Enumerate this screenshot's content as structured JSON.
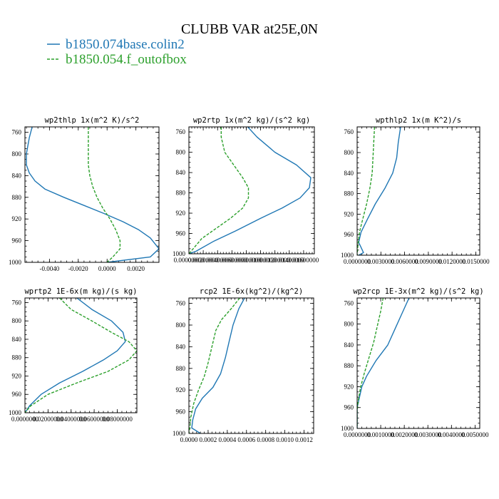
{
  "figure": {
    "title": "CLUBB VAR at25E,0N",
    "legend": [
      {
        "label": "b1850.074base.colin2",
        "color": "#1f77b4",
        "dash": "solid"
      },
      {
        "label": "b1850.054.f_outofbox",
        "color": "#2ca02c",
        "dash": "dashed"
      }
    ]
  },
  "chart_data": [
    {
      "type": "line",
      "title": "wp2thlp  1x(m^2 K)/s^2",
      "xlim": [
        -0.0057,
        0.0036
      ],
      "ylim": [
        1000,
        750
      ],
      "xticks": [
        -0.004,
        -0.002,
        0.0,
        0.002
      ],
      "xtick_labels": [
        "-0.0040",
        "-0.0020",
        "0.0000",
        "0.0020"
      ],
      "yticks": [
        760,
        800,
        840,
        880,
        920,
        960,
        1000
      ],
      "ytick_labels": [
        "760",
        "800",
        "840",
        "880",
        "920",
        "960",
        "1000"
      ],
      "series": [
        {
          "name": "b1850.074base.colin2",
          "color": "#1f77b4",
          "points": [
            [
              -0.0052,
              750
            ],
            [
              -0.0054,
              770
            ],
            [
              -0.0056,
              800
            ],
            [
              -0.0056,
              820
            ],
            [
              -0.0054,
              835
            ],
            [
              -0.005,
              850
            ],
            [
              -0.0043,
              865
            ],
            [
              -0.003,
              880
            ],
            [
              -0.0016,
              895
            ],
            [
              -0.0002,
              910
            ],
            [
              0.0011,
              925
            ],
            [
              0.0022,
              940
            ],
            [
              0.003,
              955
            ],
            [
              0.0036,
              975
            ],
            [
              0.003,
              990
            ],
            [
              0.0,
              1000
            ]
          ]
        },
        {
          "name": "b1850.054.f_outofbox",
          "color": "#2ca02c",
          "points": [
            [
              -0.0013,
              750
            ],
            [
              -0.0013,
              770
            ],
            [
              -0.0013,
              800
            ],
            [
              -0.0013,
              820
            ],
            [
              -0.0012,
              840
            ],
            [
              -0.001,
              860
            ],
            [
              -0.0007,
              880
            ],
            [
              -0.0003,
              900
            ],
            [
              0.0002,
              920
            ],
            [
              0.0006,
              940
            ],
            [
              0.0009,
              960
            ],
            [
              0.0009,
              975
            ],
            [
              0.0004,
              990
            ],
            [
              0.0,
              1000
            ]
          ]
        }
      ]
    },
    {
      "type": "line",
      "title": "wp2rtp  1x(m^2 kg)/(s^2 kg)",
      "xlim": [
        0.0,
        0.0175
      ],
      "ylim": [
        1000,
        750
      ],
      "xticks": [
        0.0,
        0.002,
        0.004,
        0.006,
        0.008,
        0.01,
        0.012,
        0.014,
        0.016
      ],
      "xtick_labels": [
        "0.00000000",
        "0.00200000",
        "0.00400000",
        "0.00600000",
        "0.00800000",
        "0.01000000",
        "0.01200000",
        "0.01400000",
        "0.01600000"
      ],
      "yticks": [
        760,
        800,
        840,
        880,
        920,
        960,
        1000
      ],
      "ytick_labels": [
        "760",
        "800",
        "840",
        "880",
        "920",
        "960",
        "1000"
      ],
      "series": [
        {
          "name": "b1850.074base.colin2",
          "color": "#1f77b4",
          "points": [
            [
              0.0082,
              750
            ],
            [
              0.0095,
              770
            ],
            [
              0.012,
              800
            ],
            [
              0.015,
              825
            ],
            [
              0.017,
              850
            ],
            [
              0.0168,
              870
            ],
            [
              0.0155,
              890
            ],
            [
              0.013,
              910
            ],
            [
              0.01,
              930
            ],
            [
              0.0065,
              955
            ],
            [
              0.0035,
              975
            ],
            [
              0.001,
              995
            ],
            [
              0.0,
              1000
            ]
          ]
        },
        {
          "name": "b1850.054.f_outofbox",
          "color": "#2ca02c",
          "points": [
            [
              0.0045,
              750
            ],
            [
              0.0045,
              770
            ],
            [
              0.005,
              800
            ],
            [
              0.0065,
              830
            ],
            [
              0.0075,
              850
            ],
            [
              0.0083,
              870
            ],
            [
              0.0083,
              890
            ],
            [
              0.0075,
              910
            ],
            [
              0.0058,
              930
            ],
            [
              0.0038,
              950
            ],
            [
              0.0018,
              970
            ],
            [
              0.0006,
              990
            ],
            [
              0.0,
              1000
            ]
          ]
        }
      ]
    },
    {
      "type": "line",
      "title": "wpthlp2  1x(m K^2)/s",
      "xlim": [
        0.0,
        0.0155
      ],
      "ylim": [
        1000,
        750
      ],
      "xticks": [
        0.0,
        0.003,
        0.006,
        0.009,
        0.012,
        0.015
      ],
      "xtick_labels": [
        "0.0000000",
        "0.0030000",
        "0.0060000",
        "0.0090000",
        "0.0120000",
        "0.0150000"
      ],
      "yticks": [
        760,
        800,
        840,
        880,
        920,
        960,
        1000
      ],
      "ytick_labels": [
        "760",
        "800",
        "840",
        "880",
        "920",
        "960",
        "1000"
      ],
      "series": [
        {
          "name": "b1850.074base.colin2",
          "color": "#1f77b4",
          "points": [
            [
              0.0055,
              750
            ],
            [
              0.0052,
              780
            ],
            [
              0.005,
              810
            ],
            [
              0.0045,
              840
            ],
            [
              0.0035,
              870
            ],
            [
              0.0023,
              900
            ],
            [
              0.0013,
              930
            ],
            [
              0.0005,
              955
            ],
            [
              0.0002,
              975
            ],
            [
              0.0008,
              995
            ],
            [
              0.0002,
              1000
            ]
          ]
        },
        {
          "name": "b1850.054.f_outofbox",
          "color": "#2ca02c",
          "points": [
            [
              0.0022,
              750
            ],
            [
              0.0021,
              780
            ],
            [
              0.002,
              810
            ],
            [
              0.0019,
              840
            ],
            [
              0.0016,
              870
            ],
            [
              0.0012,
              900
            ],
            [
              0.0007,
              930
            ],
            [
              0.0003,
              955
            ],
            [
              0.0001,
              980
            ],
            [
              0.0,
              1000
            ]
          ]
        }
      ]
    },
    {
      "type": "line",
      "title": "wprtp2  1E-6x(m kg)/(s kg)",
      "xlim": [
        0.0,
        0.097
      ],
      "ylim": [
        1000,
        750
      ],
      "xticks": [
        0.0,
        0.02,
        0.04,
        0.06,
        0.08
      ],
      "xtick_labels": [
        "0.0000000",
        "0.02000000",
        "0.04000000",
        "0.06000000",
        "0.08000000"
      ],
      "yticks": [
        760,
        800,
        840,
        880,
        920,
        960,
        1000
      ],
      "ytick_labels": [
        "760",
        "800",
        "840",
        "880",
        "920",
        "960",
        "1000"
      ],
      "series": [
        {
          "name": "b1850.074base.colin2",
          "color": "#1f77b4",
          "points": [
            [
              0.045,
              750
            ],
            [
              0.058,
              775
            ],
            [
              0.075,
              800
            ],
            [
              0.085,
              825
            ],
            [
              0.087,
              845
            ],
            [
              0.08,
              865
            ],
            [
              0.068,
              885
            ],
            [
              0.05,
              910
            ],
            [
              0.03,
              935
            ],
            [
              0.014,
              960
            ],
            [
              0.004,
              985
            ],
            [
              0.0,
              1000
            ]
          ]
        },
        {
          "name": "b1850.054.f_outofbox",
          "color": "#2ca02c",
          "points": [
            [
              0.03,
              750
            ],
            [
              0.04,
              775
            ],
            [
              0.058,
              800
            ],
            [
              0.075,
              825
            ],
            [
              0.09,
              845
            ],
            [
              0.097,
              865
            ],
            [
              0.09,
              885
            ],
            [
              0.072,
              910
            ],
            [
              0.045,
              935
            ],
            [
              0.02,
              960
            ],
            [
              0.005,
              985
            ],
            [
              0.0,
              1000
            ]
          ]
        }
      ]
    },
    {
      "type": "line",
      "title": "rcp2  1E-6x(kg^2)/(kg^2)",
      "xlim": [
        0.0,
        0.0013
      ],
      "ylim": [
        1000,
        750
      ],
      "xticks": [
        0.0,
        0.0002,
        0.0004,
        0.0006,
        0.0008,
        0.001,
        0.0012
      ],
      "xtick_labels": [
        "0.0000",
        "0.0002",
        "0.0004",
        "0.0006",
        "0.0008",
        "0.0010",
        "0.0012"
      ],
      "yticks": [
        760,
        800,
        840,
        880,
        920,
        960,
        1000
      ],
      "ytick_labels": [
        "760",
        "800",
        "840",
        "880",
        "920",
        "960",
        "1000"
      ],
      "series": [
        {
          "name": "b1850.074base.colin2",
          "color": "#1f77b4",
          "points": [
            [
              0.00058,
              750
            ],
            [
              0.00052,
              770
            ],
            [
              0.00046,
              800
            ],
            [
              0.00042,
              830
            ],
            [
              0.00038,
              860
            ],
            [
              0.00033,
              890
            ],
            [
              0.00025,
              915
            ],
            [
              0.00014,
              935
            ],
            [
              7e-05,
              955
            ],
            [
              4e-05,
              975
            ],
            [
              3e-05,
              990
            ],
            [
              0.00012,
              1000
            ]
          ]
        },
        {
          "name": "b1850.054.f_outofbox",
          "color": "#2ca02c",
          "points": [
            [
              0.00053,
              750
            ],
            [
              0.00044,
              770
            ],
            [
              0.00034,
              790
            ],
            [
              0.00028,
              810
            ],
            [
              0.00024,
              840
            ],
            [
              0.0002,
              870
            ],
            [
              0.00016,
              895
            ],
            [
              0.0001,
              920
            ],
            [
              5e-05,
              945
            ],
            [
              2e-05,
              970
            ],
            [
              1e-05,
              990
            ],
            [
              0.0,
              1000
            ]
          ]
        }
      ]
    },
    {
      "type": "line",
      "title": "wp2rcp  1E-3x(m^2 kg)/(s^2 kg)",
      "xlim": [
        0.0,
        0.0052
      ],
      "ylim": [
        1000,
        750
      ],
      "xticks": [
        0.0,
        0.001,
        0.002,
        0.003,
        0.004,
        0.005
      ],
      "xtick_labels": [
        "0.0000000",
        "0.0010000",
        "0.0020000",
        "0.0030000",
        "0.0040000",
        "0.0050000"
      ],
      "yticks": [
        760,
        800,
        840,
        880,
        920,
        960,
        1000
      ],
      "ytick_labels": [
        "760",
        "800",
        "840",
        "880",
        "920",
        "960",
        "1000"
      ],
      "series": [
        {
          "name": "b1850.074base.colin2",
          "color": "#1f77b4",
          "points": [
            [
              0.0022,
              750
            ],
            [
              0.0019,
              780
            ],
            [
              0.0016,
              810
            ],
            [
              0.0013,
              840
            ],
            [
              0.0008,
              870
            ],
            [
              0.0004,
              900
            ],
            [
              0.0002,
              920
            ],
            [
              0.0001,
              940
            ],
            [
              0.0,
              960
            ],
            [
              0.0,
              1000
            ]
          ]
        },
        {
          "name": "b1850.054.f_outofbox",
          "color": "#2ca02c",
          "points": [
            [
              0.0011,
              750
            ],
            [
              0.001,
              775
            ],
            [
              0.00085,
              805
            ],
            [
              0.0007,
              835
            ],
            [
              0.0005,
              865
            ],
            [
              0.0003,
              895
            ],
            [
              0.00015,
              920
            ],
            [
              5e-05,
              945
            ],
            [
              0.0,
              965
            ],
            [
              0.0,
              1000
            ]
          ]
        }
      ]
    }
  ]
}
